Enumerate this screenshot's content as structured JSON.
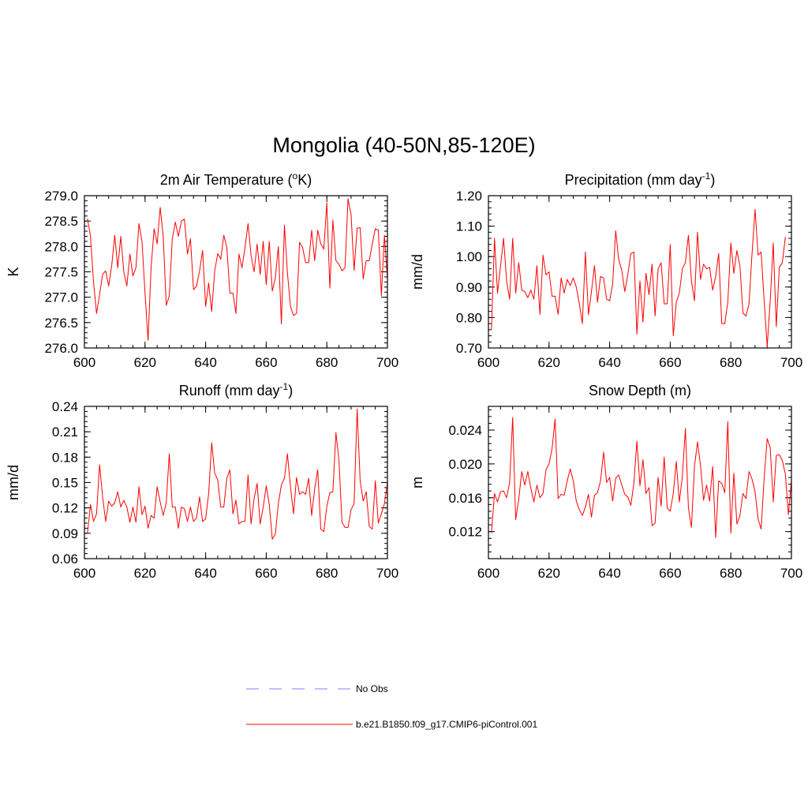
{
  "figure": {
    "title": "Mongolia (40-50N,85-120E)"
  },
  "colors": {
    "model": "#ff0000",
    "obs": "#9999ff",
    "axis": "#000000"
  },
  "legend": {
    "items": [
      {
        "label": "No Obs",
        "style": "dashed",
        "color": "#9999ff"
      },
      {
        "label": "b.e21.B1850.f09_g17.CMIP6-piControl.001",
        "style": "solid",
        "color": "#ff0000"
      }
    ]
  },
  "chart_data": [
    {
      "type": "line",
      "title": "2m Air Temperature (",
      "title_sup": "o",
      "title_after": "K)",
      "xlabel": "",
      "ylabel": "K",
      "xlim": [
        600,
        700
      ],
      "ylim": [
        276.0,
        279.0
      ],
      "xticks": [
        600,
        620,
        640,
        660,
        680,
        700
      ],
      "xtick_labels": [
        "600",
        "620",
        "640",
        "660",
        "680",
        "700"
      ],
      "yticks": [
        276.0,
        276.5,
        277.0,
        277.5,
        278.0,
        278.5,
        279.0
      ],
      "ytick_labels": [
        "276.0",
        "276.5",
        "277.0",
        "277.5",
        "278.0",
        "278.5",
        "279.0"
      ],
      "x_start": 601,
      "series": [
        {
          "name": "b.e21.B1850.f09_g17.CMIP6-piControl.001",
          "values": [
            278.55,
            278.2,
            277.3,
            276.68,
            277.05,
            277.45,
            277.52,
            277.22,
            277.62,
            278.22,
            277.58,
            278.2,
            277.5,
            277.22,
            277.85,
            277.42,
            277.58,
            278.45,
            278.1,
            277.08,
            276.15,
            277.58,
            278.35,
            278.05,
            278.77,
            278.2,
            276.84,
            277.02,
            278.15,
            278.48,
            278.2,
            278.5,
            278.54,
            277.85,
            278.15,
            277.15,
            277.22,
            277.52,
            277.92,
            276.82,
            277.28,
            276.72,
            277.52,
            277.86,
            277.75,
            278.22,
            277.98,
            277.08,
            277.08,
            276.68,
            277.85,
            277.58,
            277.98,
            278.45,
            277.82,
            277.5,
            278.05,
            277.45,
            278.1,
            277.25,
            278.1,
            277.12,
            277.38,
            278.0,
            276.47,
            278.42,
            277.48,
            276.82,
            276.64,
            276.68,
            278.08,
            277.98,
            277.68,
            277.68,
            278.32,
            277.72,
            278.32,
            278.05,
            277.95,
            278.86,
            277.18,
            278.52,
            277.72,
            277.65,
            277.52,
            277.58,
            278.94,
            278.62,
            277.53,
            278.36,
            278.37,
            277.36,
            277.72,
            277.72,
            278.05,
            278.35,
            278.32,
            277.03,
            278.22,
            277.35
          ]
        }
      ]
    },
    {
      "type": "line",
      "title": "Precipitation (mm day",
      "title_sup": "-1",
      "title_after": ")",
      "xlabel": "",
      "ylabel": "mm/d",
      "xlim": [
        600,
        700
      ],
      "ylim": [
        0.7,
        1.2
      ],
      "xticks": [
        600,
        620,
        640,
        660,
        680,
        700
      ],
      "xtick_labels": [
        "600",
        "620",
        "640",
        "660",
        "680",
        "700"
      ],
      "yticks": [
        0.7,
        0.8,
        0.9,
        1.0,
        1.1,
        1.2
      ],
      "ytick_labels": [
        "0.70",
        "0.80",
        "0.90",
        "1.00",
        "1.10",
        "1.20"
      ],
      "x_start": 601,
      "series": [
        {
          "name": "b.e21.B1850.f09_g17.CMIP6-piControl.001",
          "values": [
            0.76,
            1.06,
            0.88,
            0.97,
            1.06,
            0.92,
            0.86,
            1.06,
            0.88,
            0.98,
            0.89,
            0.885,
            0.865,
            0.89,
            0.86,
            0.97,
            0.81,
            1.005,
            0.94,
            0.95,
            0.87,
            0.87,
            0.81,
            0.93,
            0.88,
            0.925,
            0.905,
            0.93,
            0.9,
            0.845,
            0.78,
            1.015,
            0.81,
            0.885,
            0.97,
            0.85,
            0.935,
            0.93,
            0.86,
            0.855,
            0.91,
            1.085,
            0.99,
            0.955,
            0.885,
            0.94,
            1.01,
            1.015,
            0.745,
            0.92,
            0.785,
            0.945,
            0.875,
            0.975,
            0.805,
            0.96,
            0.98,
            0.845,
            0.845,
            1.04,
            0.74,
            0.85,
            0.88,
            0.96,
            0.98,
            1.07,
            0.92,
            0.855,
            1.08,
            0.925,
            0.975,
            0.96,
            0.965,
            0.89,
            0.935,
            1.01,
            0.78,
            0.78,
            0.85,
            1.045,
            0.945,
            1.02,
            0.97,
            0.815,
            0.805,
            0.845,
            1.01,
            1.155,
            1.005,
            1.015,
            0.855,
            0.705,
            0.855,
            1.045,
            0.77,
            0.965,
            0.98,
            1.065
          ]
        }
      ]
    },
    {
      "type": "line",
      "title": "Runoff (mm day",
      "title_sup": "-1",
      "title_after": ")",
      "xlabel": "",
      "ylabel": "mm/d",
      "xlim": [
        600,
        700
      ],
      "ylim": [
        0.06,
        0.24
      ],
      "xticks": [
        600,
        620,
        640,
        660,
        680,
        700
      ],
      "xtick_labels": [
        "600",
        "620",
        "640",
        "660",
        "680",
        "700"
      ],
      "yticks": [
        0.06,
        0.09,
        0.12,
        0.15,
        0.18,
        0.21,
        0.24
      ],
      "ytick_labels": [
        "0.06",
        "0.09",
        "0.12",
        "0.15",
        "0.18",
        "0.21",
        "0.24"
      ],
      "x_start": 601,
      "series": [
        {
          "name": "b.e21.B1850.f09_g17.CMIP6-piControl.001",
          "values": [
            0.09,
            0.124,
            0.104,
            0.113,
            0.171,
            0.133,
            0.104,
            0.128,
            0.122,
            0.126,
            0.139,
            0.121,
            0.129,
            0.121,
            0.103,
            0.121,
            0.103,
            0.145,
            0.112,
            0.122,
            0.096,
            0.111,
            0.108,
            0.145,
            0.127,
            0.111,
            0.126,
            0.184,
            0.121,
            0.121,
            0.096,
            0.121,
            0.119,
            0.104,
            0.121,
            0.104,
            0.108,
            0.133,
            0.104,
            0.107,
            0.137,
            0.197,
            0.161,
            0.153,
            0.121,
            0.121,
            0.155,
            0.165,
            0.113,
            0.129,
            0.101,
            0.104,
            0.104,
            0.159,
            0.101,
            0.131,
            0.149,
            0.101,
            0.121,
            0.146,
            0.124,
            0.083,
            0.089,
            0.125,
            0.147,
            0.155,
            0.184,
            0.145,
            0.113,
            0.156,
            0.136,
            0.139,
            0.136,
            0.155,
            0.111,
            0.143,
            0.165,
            0.095,
            0.092,
            0.122,
            0.138,
            0.139,
            0.209,
            0.176,
            0.103,
            0.097,
            0.097,
            0.118,
            0.125,
            0.237,
            0.152,
            0.128,
            0.139,
            0.098,
            0.095,
            0.152,
            0.102,
            0.113,
            0.125,
            0.15
          ]
        }
      ]
    },
    {
      "type": "line",
      "title": "Snow Depth (m)",
      "title_sup": "",
      "title_after": "",
      "xlabel": "",
      "ylabel": "m",
      "xlim": [
        600,
        700
      ],
      "ylim": [
        0.0088,
        0.0268
      ],
      "xticks": [
        600,
        620,
        640,
        660,
        680,
        700
      ],
      "xtick_labels": [
        "600",
        "620",
        "640",
        "660",
        "680",
        "700"
      ],
      "yticks": [
        0.012,
        0.016,
        0.02,
        0.024
      ],
      "ytick_labels": [
        "0.012",
        "0.016",
        "0.020",
        "0.024"
      ],
      "x_start": 601,
      "series": [
        {
          "name": "b.e21.B1850.f09_g17.CMIP6-piControl.001",
          "values": [
            0.0118,
            0.0165,
            0.0155,
            0.0167,
            0.0168,
            0.016,
            0.0178,
            0.0255,
            0.0134,
            0.0158,
            0.0191,
            0.0175,
            0.0191,
            0.0171,
            0.0155,
            0.0175,
            0.016,
            0.0165,
            0.0193,
            0.02,
            0.0218,
            0.0253,
            0.0159,
            0.0164,
            0.0163,
            0.018,
            0.0194,
            0.018,
            0.0156,
            0.0146,
            0.0139,
            0.0149,
            0.0164,
            0.0137,
            0.0163,
            0.0166,
            0.018,
            0.0214,
            0.0178,
            0.0184,
            0.0156,
            0.0183,
            0.0187,
            0.0175,
            0.0164,
            0.0161,
            0.0151,
            0.0177,
            0.0227,
            0.0174,
            0.0205,
            0.0165,
            0.0172,
            0.0127,
            0.013,
            0.0184,
            0.015,
            0.0208,
            0.0148,
            0.0144,
            0.0165,
            0.0203,
            0.0155,
            0.0185,
            0.0242,
            0.0148,
            0.0125,
            0.0197,
            0.0226,
            0.0198,
            0.0157,
            0.0175,
            0.0156,
            0.0197,
            0.0113,
            0.018,
            0.0177,
            0.0166,
            0.025,
            0.0118,
            0.0189,
            0.0129,
            0.0139,
            0.0165,
            0.0159,
            0.0191,
            0.0182,
            0.0167,
            0.0135,
            0.0123,
            0.0183,
            0.023,
            0.0219,
            0.0155,
            0.021,
            0.0211,
            0.0204,
            0.0188,
            0.014,
            0.0181
          ]
        }
      ]
    }
  ]
}
